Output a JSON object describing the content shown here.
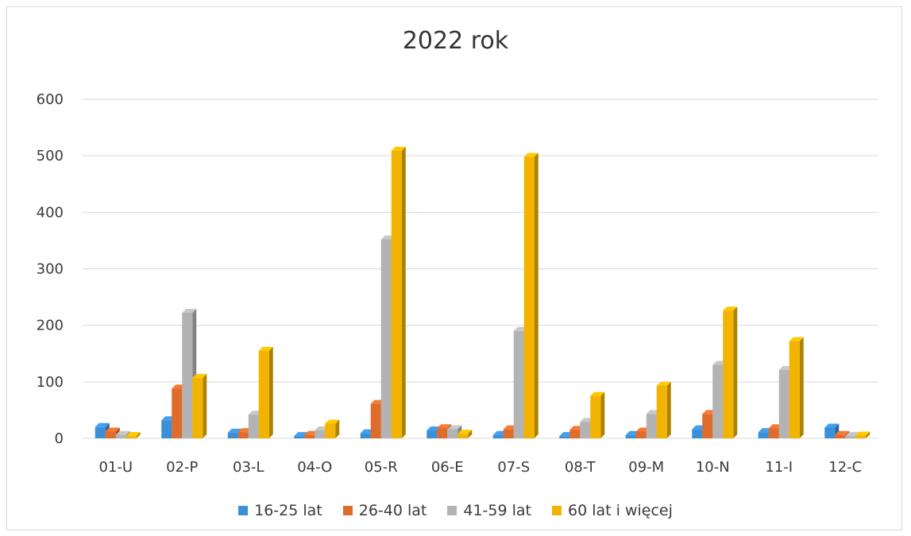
{
  "chart_data": {
    "type": "bar",
    "title": "2022 rok",
    "categories": [
      "01-U",
      "02-P",
      "03-L",
      "04-O",
      "05-R",
      "06-E",
      "07-S",
      "08-T",
      "09-M",
      "10-N",
      "11-I",
      "12-C"
    ],
    "series": [
      {
        "name": "16-25 lat",
        "color": "#3b8fd6",
        "values": [
          20,
          32,
          10,
          4,
          9,
          14,
          6,
          4,
          6,
          16,
          11,
          19
        ]
      },
      {
        "name": "26-40 lat",
        "color": "#e06c2b",
        "values": [
          12,
          88,
          11,
          6,
          61,
          18,
          16,
          15,
          12,
          43,
          18,
          6
        ]
      },
      {
        "name": "41-59 lat",
        "color": "#b3b3b3",
        "values": [
          6,
          222,
          42,
          14,
          352,
          16,
          190,
          29,
          43,
          130,
          121,
          4
        ]
      },
      {
        "name": "60 lat i więcej",
        "color": "#f2b400",
        "values": [
          4,
          107,
          155,
          26,
          509,
          8,
          498,
          75,
          93,
          226,
          172,
          5
        ]
      }
    ],
    "yticks": [
      "0",
      "100",
      "200",
      "300",
      "400",
      "500",
      "600"
    ],
    "ylim": [
      0,
      600
    ],
    "grid": true,
    "legend_position": "bottom"
  }
}
